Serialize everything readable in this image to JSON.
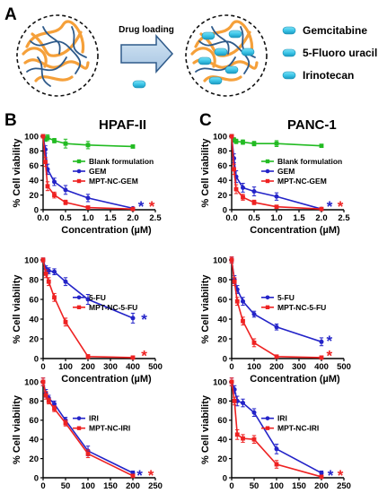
{
  "schematic": {
    "letter": "A",
    "arrow_label": "Drug loading",
    "drugs": [
      "Gemcitabine",
      "5-Fluoro uracil",
      "Irinotecan"
    ],
    "colors": {
      "polymer_orange": "#F5A03A",
      "polymer_blue": "#2E5A8A",
      "drug_cyan": "#3CC6E8"
    }
  },
  "panel_letters": {
    "left": "B",
    "right": "C"
  },
  "column_titles": {
    "left": "HPAF-II",
    "right": "PANC-1"
  },
  "chart_data": [
    {
      "type": "line",
      "col": 0,
      "row": 0,
      "cell_line": "HPAF-II",
      "xlabel": "Concentration (µM)",
      "ylabel": "% Cell viability",
      "xlim": [
        0,
        2.5
      ],
      "ylim": [
        0,
        100
      ],
      "xticks": [
        0,
        0.5,
        1,
        1.5,
        2,
        2.5
      ],
      "xtick_labels": [
        "0.0",
        "0.5",
        "1.0",
        "1.5",
        "2.0",
        "2.5"
      ],
      "yticks": [
        0,
        20,
        40,
        60,
        80,
        100
      ],
      "ytick_labels": [
        "0",
        "20",
        "40",
        "60",
        "80",
        "100"
      ],
      "legend_position": "center-right",
      "series": [
        {
          "name": "Blank formulation",
          "color": "#22BB22",
          "marker": "square",
          "x": [
            0,
            0.05,
            0.1,
            0.25,
            0.5,
            1,
            2
          ],
          "y": [
            100,
            96,
            98,
            94,
            90,
            88,
            86
          ],
          "err": [
            2,
            3,
            4,
            3,
            6,
            5,
            2
          ]
        },
        {
          "name": "GEM",
          "color": "#2323C8",
          "marker": "circle",
          "x": [
            0,
            0.05,
            0.1,
            0.25,
            0.5,
            1,
            2
          ],
          "y": [
            100,
            82,
            55,
            38,
            27,
            16,
            2
          ],
          "err": [
            2,
            5,
            7,
            5,
            6,
            5,
            1
          ]
        },
        {
          "name": "MPT-NC-GEM",
          "color": "#EE2222",
          "marker": "square",
          "x": [
            0,
            0.05,
            0.1,
            0.25,
            0.5,
            1,
            2
          ],
          "y": [
            100,
            65,
            32,
            20,
            10,
            3,
            1
          ],
          "err": [
            2,
            6,
            6,
            4,
            3,
            2,
            1
          ]
        }
      ],
      "stars": [
        {
          "text": "*",
          "color": "#2323C8",
          "x": 2.18,
          "y": 5
        },
        {
          "text": "*",
          "color": "#EE2222",
          "x": 2.42,
          "y": 5
        }
      ]
    },
    {
      "type": "line",
      "col": 1,
      "row": 0,
      "cell_line": "PANC-1",
      "xlabel": "Concentration (µM)",
      "ylabel": "% Cell viability",
      "xlim": [
        0,
        2.5
      ],
      "ylim": [
        0,
        100
      ],
      "xticks": [
        0,
        0.5,
        1,
        1.5,
        2,
        2.5
      ],
      "xtick_labels": [
        "0.0",
        "0.5",
        "1.0",
        "1.5",
        "2.0",
        "2.5"
      ],
      "yticks": [
        0,
        20,
        40,
        60,
        80,
        100
      ],
      "ytick_labels": [
        "0",
        "20",
        "40",
        "60",
        "80",
        "100"
      ],
      "legend_position": "center-right",
      "series": [
        {
          "name": "Blank formulation",
          "color": "#22BB22",
          "marker": "square",
          "x": [
            0,
            0.05,
            0.1,
            0.25,
            0.5,
            1,
            2
          ],
          "y": [
            100,
            95,
            93,
            92,
            90,
            90,
            87
          ],
          "err": [
            2,
            3,
            3,
            3,
            3,
            4,
            2
          ]
        },
        {
          "name": "GEM",
          "color": "#2323C8",
          "marker": "circle",
          "x": [
            0,
            0.05,
            0.1,
            0.25,
            0.5,
            1,
            2
          ],
          "y": [
            100,
            70,
            45,
            30,
            25,
            18,
            1
          ],
          "err": [
            2,
            6,
            8,
            6,
            6,
            5,
            1
          ]
        },
        {
          "name": "MPT-NC-GEM",
          "color": "#EE2222",
          "marker": "square",
          "x": [
            0,
            0.05,
            0.1,
            0.25,
            0.5,
            1,
            2
          ],
          "y": [
            100,
            55,
            28,
            17,
            10,
            4,
            1
          ],
          "err": [
            2,
            7,
            6,
            4,
            3,
            2,
            1
          ]
        }
      ],
      "stars": [
        {
          "text": "*",
          "color": "#2323C8",
          "x": 2.18,
          "y": 5
        },
        {
          "text": "*",
          "color": "#EE2222",
          "x": 2.42,
          "y": 5
        }
      ]
    },
    {
      "type": "line",
      "col": 0,
      "row": 1,
      "cell_line": "HPAF-II",
      "xlabel": "Concentration (µM)",
      "ylabel": "% Cell viability",
      "xlim": [
        0,
        500
      ],
      "ylim": [
        0,
        100
      ],
      "xticks": [
        0,
        100,
        200,
        300,
        400,
        500
      ],
      "xtick_labels": [
        "0",
        "100",
        "200",
        "300",
        "400",
        "500"
      ],
      "yticks": [
        0,
        20,
        40,
        60,
        80,
        100
      ],
      "ytick_labels": [
        "0",
        "20",
        "40",
        "60",
        "80",
        "100"
      ],
      "legend_position": "center-right",
      "series": [
        {
          "name": "5-FU",
          "color": "#2323C8",
          "marker": "circle",
          "x": [
            0,
            12.5,
            25,
            50,
            100,
            200,
            400
          ],
          "y": [
            100,
            91,
            89,
            88,
            78,
            60,
            41
          ],
          "err": [
            2,
            3,
            3,
            3,
            4,
            5,
            5
          ]
        },
        {
          "name": "MPT-NC-5-FU",
          "color": "#EE2222",
          "marker": "square",
          "x": [
            0,
            12.5,
            25,
            50,
            100,
            200,
            400
          ],
          "y": [
            100,
            86,
            78,
            62,
            37,
            2,
            1
          ],
          "err": [
            2,
            4,
            4,
            4,
            4,
            2,
            1
          ]
        }
      ],
      "stars": [
        {
          "text": "*",
          "color": "#2323C8",
          "x": 450,
          "y": 40
        },
        {
          "text": "*",
          "color": "#EE2222",
          "x": 450,
          "y": 3
        }
      ]
    },
    {
      "type": "line",
      "col": 1,
      "row": 1,
      "cell_line": "PANC-1",
      "xlabel": "Concentration (µM)",
      "ylabel": "% Cell viability",
      "xlim": [
        0,
        500
      ],
      "ylim": [
        0,
        100
      ],
      "xticks": [
        0,
        100,
        200,
        300,
        400,
        500
      ],
      "xtick_labels": [
        "0",
        "100",
        "200",
        "300",
        "400",
        "500"
      ],
      "yticks": [
        0,
        20,
        40,
        60,
        80,
        100
      ],
      "ytick_labels": [
        "0",
        "20",
        "40",
        "60",
        "80",
        "100"
      ],
      "legend_position": "center-right",
      "series": [
        {
          "name": "5-FU",
          "color": "#2323C8",
          "marker": "circle",
          "x": [
            0,
            12.5,
            25,
            50,
            100,
            200,
            400
          ],
          "y": [
            100,
            80,
            70,
            58,
            45,
            32,
            17
          ],
          "err": [
            3,
            4,
            4,
            4,
            3,
            3,
            4
          ]
        },
        {
          "name": "MPT-NC-5-FU",
          "color": "#EE2222",
          "marker": "square",
          "x": [
            0,
            12.5,
            25,
            50,
            100,
            200,
            400
          ],
          "y": [
            100,
            78,
            58,
            38,
            16,
            2,
            1
          ],
          "err": [
            3,
            4,
            4,
            4,
            4,
            1,
            1
          ]
        }
      ],
      "stars": [
        {
          "text": "*",
          "color": "#2323C8",
          "x": 435,
          "y": 18
        },
        {
          "text": "*",
          "color": "#EE2222",
          "x": 435,
          "y": 3
        }
      ]
    },
    {
      "type": "line",
      "col": 0,
      "row": 2,
      "cell_line": "HPAF-II",
      "xlabel": "Concentration (µM)",
      "ylabel": "% Cell viability",
      "xlim": [
        0,
        250
      ],
      "ylim": [
        0,
        100
      ],
      "xticks": [
        0,
        50,
        100,
        150,
        200,
        250
      ],
      "xtick_labels": [
        "0",
        "50",
        "100",
        "150",
        "200",
        "250"
      ],
      "yticks": [
        0,
        20,
        40,
        60,
        80,
        100
      ],
      "ytick_labels": [
        "0",
        "20",
        "40",
        "60",
        "80",
        "100"
      ],
      "legend_position": "center-right",
      "series": [
        {
          "name": "IRI",
          "color": "#2323C8",
          "marker": "circle",
          "x": [
            0,
            6.25,
            12.5,
            25,
            50,
            100,
            200
          ],
          "y": [
            100,
            88,
            83,
            77,
            60,
            28,
            5
          ],
          "err": [
            4,
            4,
            3,
            3,
            3,
            5,
            2
          ]
        },
        {
          "name": "MPT-NC-IRI",
          "color": "#EE2222",
          "marker": "square",
          "x": [
            0,
            6.25,
            12.5,
            25,
            50,
            100,
            200
          ],
          "y": [
            100,
            86,
            80,
            72,
            57,
            25,
            2
          ],
          "err": [
            4,
            4,
            3,
            3,
            3,
            4,
            1
          ]
        }
      ],
      "stars": [
        {
          "text": "*",
          "color": "#2323C8",
          "x": 215,
          "y": 3
        },
        {
          "text": "*",
          "color": "#EE2222",
          "x": 240,
          "y": 3
        }
      ]
    },
    {
      "type": "line",
      "col": 1,
      "row": 2,
      "cell_line": "PANC-1",
      "xlabel": "Concentration (µM)",
      "ylabel": "% Cell viability",
      "xlim": [
        0,
        250
      ],
      "ylim": [
        0,
        100
      ],
      "xticks": [
        0,
        50,
        100,
        150,
        200,
        250
      ],
      "xtick_labels": [
        "0",
        "50",
        "100",
        "150",
        "200",
        "250"
      ],
      "yticks": [
        0,
        20,
        40,
        60,
        80,
        100
      ],
      "ytick_labels": [
        "0",
        "20",
        "40",
        "60",
        "80",
        "100"
      ],
      "legend_position": "center-right",
      "series": [
        {
          "name": "IRI",
          "color": "#2323C8",
          "marker": "circle",
          "x": [
            0,
            6.25,
            12.5,
            25,
            50,
            100,
            200
          ],
          "y": [
            100,
            92,
            80,
            78,
            68,
            30,
            5
          ],
          "err": [
            4,
            4,
            5,
            4,
            4,
            5,
            2
          ]
        },
        {
          "name": "MPT-NC-IRI",
          "color": "#EE2222",
          "marker": "square",
          "x": [
            0,
            6.25,
            12.5,
            25,
            50,
            100,
            200
          ],
          "y": [
            100,
            80,
            45,
            41,
            40,
            14,
            1
          ],
          "err": [
            4,
            4,
            5,
            4,
            4,
            4,
            1
          ]
        }
      ],
      "stars": [
        {
          "text": "*",
          "color": "#2323C8",
          "x": 220,
          "y": 3
        },
        {
          "text": "*",
          "color": "#EE2222",
          "x": 242,
          "y": 3
        }
      ]
    }
  ]
}
